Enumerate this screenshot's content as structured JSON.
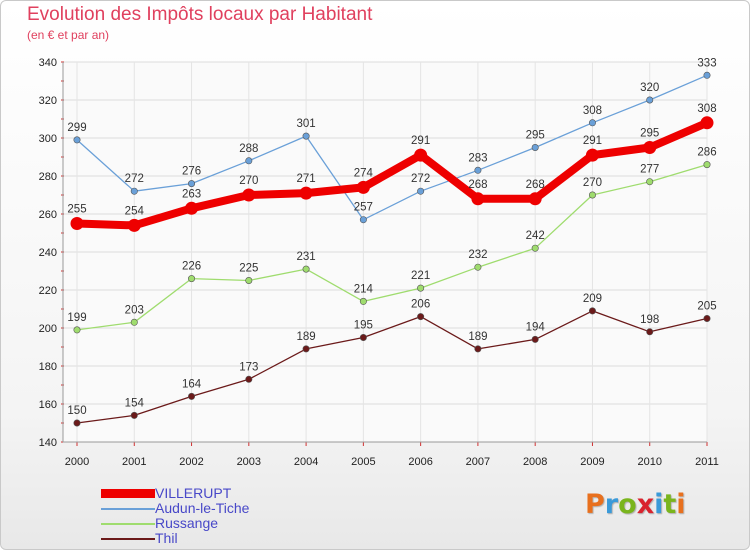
{
  "header": {
    "title": "Evolution des Impôts locaux par Habitant",
    "subtitle": "(en € et par an)"
  },
  "logo": {
    "letters": [
      "P",
      "r",
      "o",
      "x",
      "i",
      "t",
      "i"
    ],
    "colors": [
      "#e8701e",
      "#3a9ad9",
      "#7ab51d",
      "#d9232e",
      "#3a9ad9",
      "#7ab51d",
      "#e8701e"
    ]
  },
  "chart_data": {
    "type": "line",
    "x": [
      2000,
      2001,
      2002,
      2003,
      2004,
      2005,
      2006,
      2007,
      2008,
      2009,
      2010,
      2011
    ],
    "ylim": [
      140,
      340
    ],
    "yticks": [
      140,
      160,
      180,
      200,
      220,
      240,
      260,
      280,
      300,
      320,
      340
    ],
    "grid": true,
    "legend": "bottom-left",
    "series": [
      {
        "name": "Thil",
        "color": "#6b1a1a",
        "values": [
          150,
          154,
          164,
          173,
          189,
          195,
          206,
          189,
          194,
          209,
          198,
          205
        ]
      },
      {
        "name": "Russange",
        "color": "#9fdc6e",
        "values": [
          199,
          203,
          226,
          225,
          231,
          214,
          221,
          232,
          242,
          270,
          277,
          286
        ]
      },
      {
        "name": "Audun-le-Tiche",
        "color": "#6aa0d8",
        "values": [
          299,
          272,
          276,
          288,
          301,
          257,
          272,
          283,
          295,
          308,
          320,
          333
        ]
      },
      {
        "name": "VILLERUPT",
        "color": "#ee0000",
        "values": [
          255,
          254,
          263,
          270,
          271,
          274,
          291,
          268,
          268,
          291,
          295,
          308
        ]
      }
    ],
    "legend_order": [
      "VILLERUPT",
      "Audun-le-Tiche",
      "Russange",
      "Thil"
    ]
  }
}
